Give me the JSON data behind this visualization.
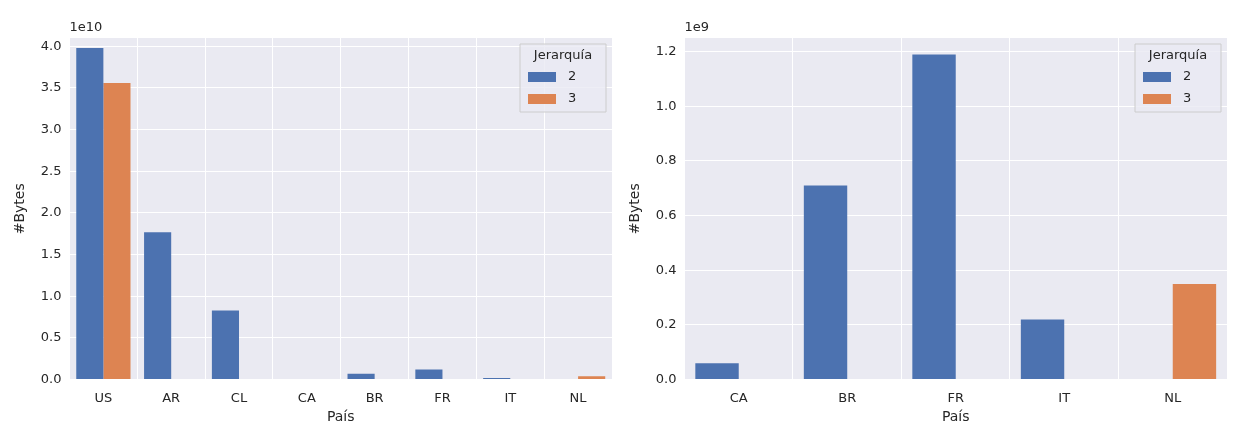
{
  "chart_data": [
    {
      "type": "bar",
      "xlabel": "País",
      "ylabel": "#Bytes",
      "annotations": [
        "1e10"
      ],
      "categories": [
        "US",
        "AR",
        "CL",
        "CA",
        "BR",
        "FR",
        "IT",
        "NL"
      ],
      "series": [
        {
          "name": "2",
          "color": "#4c72b0",
          "values": [
            3.98,
            1.77,
            0.83,
            null,
            0.07,
            0.12,
            0.02,
            null
          ]
        },
        {
          "name": "3",
          "color": "#dd8452",
          "values": [
            3.56,
            null,
            null,
            null,
            null,
            null,
            null,
            0.04
          ]
        }
      ],
      "legend_title": "Jerarquía",
      "legend": "top right",
      "grid": true,
      "ylim": [
        0,
        4.1
      ],
      "yticks": [
        {
          "value": 0,
          "label": "0.0"
        },
        {
          "value": 0.5,
          "label": "0.5"
        },
        {
          "value": 1,
          "label": "1.0"
        },
        {
          "value": 1.5,
          "label": "1.5"
        },
        {
          "value": 2,
          "label": "2.0"
        },
        {
          "value": 2.5,
          "label": "2.5"
        },
        {
          "value": 3,
          "label": "3.0"
        },
        {
          "value": 3.5,
          "label": "3.5"
        },
        {
          "value": 4,
          "label": "4.0"
        }
      ]
    },
    {
      "type": "bar",
      "xlabel": "País",
      "ylabel": "#Bytes",
      "annotations": [
        "1e9"
      ],
      "categories": [
        "CA",
        "BR",
        "FR",
        "IT",
        "NL"
      ],
      "series": [
        {
          "name": "2",
          "color": "#4c72b0",
          "values": [
            0.06,
            0.71,
            1.19,
            0.22,
            null
          ]
        },
        {
          "name": "3",
          "color": "#dd8452",
          "values": [
            null,
            null,
            null,
            null,
            0.35
          ]
        }
      ],
      "legend_title": "Jerarquía",
      "legend": "top right",
      "grid": true,
      "ylim": [
        0,
        1.25
      ],
      "yticks": [
        {
          "value": 0,
          "label": "0.0"
        },
        {
          "value": 0.2,
          "label": "0.2"
        },
        {
          "value": 0.4,
          "label": "0.4"
        },
        {
          "value": 0.6,
          "label": "0.6"
        },
        {
          "value": 0.8,
          "label": "0.8"
        },
        {
          "value": 1,
          "label": "1.0"
        },
        {
          "value": 1.2,
          "label": "1.2"
        }
      ]
    }
  ]
}
